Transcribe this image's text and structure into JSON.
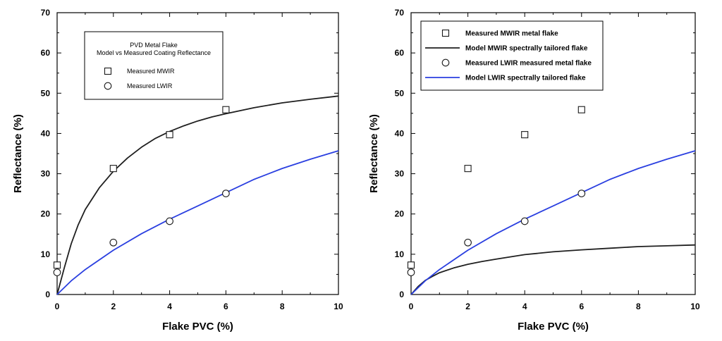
{
  "chart_data": [
    {
      "type": "scatter",
      "title": "",
      "xlabel": "Flake PVC (%)",
      "ylabel": "Reflectance (%)",
      "xlim": [
        0,
        10
      ],
      "ylim": [
        0,
        70
      ],
      "xticks": [
        0,
        2,
        4,
        6,
        8,
        10
      ],
      "yticks": [
        0,
        10,
        20,
        30,
        40,
        50,
        60,
        70
      ],
      "grid": false,
      "legend": {
        "position": "upper-left",
        "title_lines": [
          "PVD Metal Flake",
          "Model vs Measured Coating Reflectance"
        ],
        "entries": [
          "Measured MWIR",
          "Measured LWIR"
        ]
      },
      "series": [
        {
          "name": "Measured MWIR",
          "kind": "points",
          "marker": "square",
          "x": [
            0,
            2,
            4,
            6
          ],
          "y": [
            7.3,
            31.3,
            39.7,
            45.9
          ]
        },
        {
          "name": "Measured LWIR",
          "kind": "points",
          "marker": "circle",
          "x": [
            0,
            2,
            4,
            6
          ],
          "y": [
            5.5,
            12.9,
            18.2,
            25.1
          ]
        },
        {
          "kind": "line",
          "color": "#1f1f1f",
          "x": [
            0,
            0.25,
            0.5,
            0.75,
            1,
            1.5,
            2,
            2.5,
            3,
            3.5,
            4,
            4.5,
            5,
            5.5,
            6,
            7,
            8,
            9,
            10
          ],
          "y": [
            0,
            6.5,
            12.6,
            17.3,
            21.1,
            26.5,
            30.6,
            33.9,
            36.6,
            38.8,
            40.5,
            41.9,
            43.1,
            44.1,
            44.9,
            46.4,
            47.6,
            48.5,
            49.3
          ]
        },
        {
          "kind": "line",
          "color": "#2a3fe0",
          "x": [
            0,
            0.5,
            1,
            2,
            3,
            4,
            5,
            6,
            7,
            8,
            9,
            10
          ],
          "y": [
            0,
            3.4,
            6.2,
            11.0,
            15.1,
            18.7,
            22.0,
            25.3,
            28.6,
            31.3,
            33.6,
            35.7
          ]
        }
      ]
    },
    {
      "type": "scatter",
      "title": "",
      "xlabel": "Flake PVC (%)",
      "ylabel": "Reflectance (%)",
      "xlim": [
        0,
        10
      ],
      "ylim": [
        0,
        70
      ],
      "xticks": [
        0,
        2,
        4,
        6,
        8,
        10
      ],
      "yticks": [
        0,
        10,
        20,
        30,
        40,
        50,
        60,
        70
      ],
      "grid": false,
      "legend": {
        "position": "upper-left",
        "entries": [
          "Measured MWIR metal flake",
          "Model MWIR spectrally tailored flake",
          "Measured LWIR measured metal flake",
          "Model LWIR spectrally tailored flake"
        ]
      },
      "series": [
        {
          "name": "Measured MWIR metal flake",
          "kind": "points",
          "marker": "square",
          "x": [
            0,
            2,
            4,
            6
          ],
          "y": [
            7.3,
            31.3,
            39.7,
            45.9
          ]
        },
        {
          "name": "Model MWIR spectrally tailored flake",
          "kind": "line",
          "color": "#1f1f1f",
          "x": [
            0,
            0.25,
            0.5,
            0.75,
            1,
            1.5,
            2,
            2.5,
            3,
            4,
            5,
            6,
            7,
            8,
            9,
            10
          ],
          "y": [
            0,
            2.0,
            3.5,
            4.5,
            5.4,
            6.6,
            7.5,
            8.2,
            8.8,
            9.9,
            10.6,
            11.1,
            11.5,
            11.9,
            12.1,
            12.3
          ]
        },
        {
          "name": "Measured LWIR measured metal flake",
          "kind": "points",
          "marker": "circle",
          "x": [
            0,
            2,
            4,
            6
          ],
          "y": [
            5.5,
            12.9,
            18.2,
            25.1
          ]
        },
        {
          "name": "Model LWIR spectrally tailored flake",
          "kind": "line",
          "color": "#2a3fe0",
          "x": [
            0,
            0.5,
            1,
            2,
            3,
            4,
            5,
            6,
            7,
            8,
            9,
            10
          ],
          "y": [
            0,
            3.4,
            6.2,
            11.0,
            15.1,
            18.7,
            22.0,
            25.3,
            28.6,
            31.3,
            33.6,
            35.7
          ]
        }
      ]
    }
  ]
}
